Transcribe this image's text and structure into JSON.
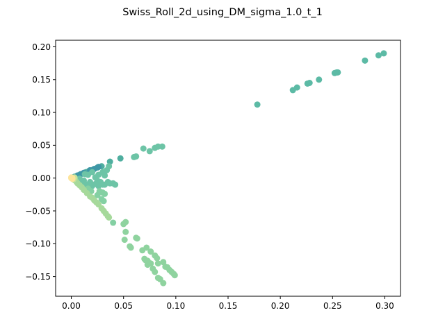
{
  "chart_data": {
    "type": "scatter",
    "title": "Swiss_Roll_2d_using_DM_sigma_1.0_t_1",
    "xlabel": "",
    "ylabel": "",
    "xlim": [
      -0.015,
      0.315
    ],
    "ylim": [
      -0.18,
      0.21
    ],
    "xticks": [
      0.0,
      0.05,
      0.1,
      0.15,
      0.2,
      0.25,
      0.3
    ],
    "xtick_labels": [
      "0.00",
      "0.05",
      "0.10",
      "0.15",
      "0.20",
      "0.25",
      "0.30"
    ],
    "yticks": [
      -0.15,
      -0.1,
      -0.05,
      0.0,
      0.05,
      0.1,
      0.15,
      0.2
    ],
    "ytick_labels": [
      "−0.15",
      "−0.10",
      "−0.05",
      "0.00",
      "0.05",
      "0.10",
      "0.15",
      "0.20"
    ],
    "grid": false,
    "colormap": "viridis-like (light)",
    "series": [
      {
        "color": "#5cbaa5",
        "points": [
          [
            0.178,
            0.112
          ],
          [
            0.212,
            0.134
          ],
          [
            0.216,
            0.138
          ],
          [
            0.226,
            0.144
          ],
          [
            0.228,
            0.145
          ],
          [
            0.237,
            0.15
          ],
          [
            0.252,
            0.16
          ],
          [
            0.254,
            0.161
          ],
          [
            0.255,
            0.161
          ],
          [
            0.281,
            0.179
          ],
          [
            0.294,
            0.187
          ],
          [
            0.299,
            0.19
          ]
        ]
      },
      {
        "color": "#4fae9f",
        "points": [
          [
            0.047,
            0.03
          ],
          [
            0.037,
            0.025
          ],
          [
            0.029,
            0.018
          ],
          [
            0.025,
            0.016
          ],
          [
            0.021,
            0.013
          ],
          [
            0.017,
            0.011
          ],
          [
            0.014,
            0.009
          ],
          [
            0.011,
            0.007
          ],
          [
            0.008,
            0.005
          ],
          [
            0.005,
            0.003
          ],
          [
            0.003,
            0.002
          ]
        ]
      },
      {
        "color": "#3f97a6",
        "points": [
          [
            0.018,
            0.012
          ],
          [
            0.022,
            0.014
          ],
          [
            0.026,
            0.017
          ],
          [
            0.012,
            0.008
          ],
          [
            0.009,
            0.006
          ],
          [
            0.006,
            0.004
          ],
          [
            0.004,
            0.002
          ]
        ]
      },
      {
        "color": "#6dc4a6",
        "points": [
          [
            0.069,
            0.045
          ],
          [
            0.075,
            0.041
          ],
          [
            0.08,
            0.046
          ],
          [
            0.083,
            0.048
          ],
          [
            0.087,
            0.048
          ],
          [
            0.06,
            0.032
          ],
          [
            0.062,
            0.033
          ],
          [
            0.036,
            0.018
          ],
          [
            0.034,
            0.012
          ],
          [
            0.03,
            0.009
          ],
          [
            0.026,
            0.005
          ],
          [
            0.023,
            0.001
          ],
          [
            0.025,
            -0.004
          ],
          [
            0.028,
            -0.006
          ],
          [
            0.032,
            -0.01
          ],
          [
            0.03,
            -0.01
          ],
          [
            0.035,
            -0.006
          ],
          [
            0.037,
            -0.008
          ],
          [
            0.04,
            -0.008
          ],
          [
            0.042,
            -0.01
          ],
          [
            0.026,
            -0.012
          ],
          [
            0.02,
            -0.012
          ],
          [
            0.015,
            -0.01
          ],
          [
            0.01,
            -0.008
          ],
          [
            0.012,
            -0.004
          ],
          [
            0.008,
            -0.001
          ],
          [
            0.016,
            0.005
          ],
          [
            0.02,
            0.009
          ],
          [
            0.013,
            0.006
          ],
          [
            0.023,
            -0.009
          ],
          [
            0.018,
            -0.006
          ],
          [
            0.032,
            0.004
          ]
        ]
      },
      {
        "color": "#84d0a3",
        "points": [
          [
            0.027,
            -0.02
          ],
          [
            0.03,
            -0.022
          ],
          [
            0.025,
            -0.026
          ],
          [
            0.032,
            -0.024
          ],
          [
            0.029,
            -0.032
          ],
          [
            0.031,
            -0.035
          ],
          [
            0.019,
            -0.02
          ],
          [
            0.016,
            -0.016
          ],
          [
            0.04,
            -0.068
          ]
        ]
      },
      {
        "color": "#8fd39f",
        "points": [
          [
            0.052,
            -0.067
          ],
          [
            0.05,
            -0.07
          ],
          [
            0.052,
            -0.082
          ],
          [
            0.051,
            -0.094
          ],
          [
            0.056,
            -0.104
          ],
          [
            0.057,
            -0.106
          ],
          [
            0.062,
            -0.091
          ],
          [
            0.063,
            -0.092
          ],
          [
            0.068,
            -0.11
          ],
          [
            0.072,
            -0.106
          ],
          [
            0.076,
            -0.112
          ],
          [
            0.07,
            -0.123
          ],
          [
            0.071,
            -0.125
          ],
          [
            0.073,
            -0.126
          ],
          [
            0.073,
            -0.132
          ],
          [
            0.076,
            -0.13
          ],
          [
            0.08,
            -0.118
          ],
          [
            0.082,
            -0.122
          ],
          [
            0.083,
            -0.13
          ],
          [
            0.088,
            -0.128
          ],
          [
            0.078,
            -0.138
          ],
          [
            0.08,
            -0.143
          ],
          [
            0.083,
            -0.152
          ],
          [
            0.085,
            -0.154
          ],
          [
            0.088,
            -0.16
          ],
          [
            0.09,
            -0.135
          ],
          [
            0.092,
            -0.136
          ],
          [
            0.094,
            -0.14
          ],
          [
            0.096,
            -0.143
          ],
          [
            0.098,
            -0.146
          ],
          [
            0.099,
            -0.148
          ]
        ]
      },
      {
        "color": "#a6d99b",
        "points": [
          [
            0.036,
            -0.06
          ],
          [
            0.035,
            -0.058
          ],
          [
            0.033,
            -0.054
          ],
          [
            0.031,
            -0.05
          ],
          [
            0.029,
            -0.046
          ],
          [
            0.026,
            -0.04
          ],
          [
            0.024,
            -0.037
          ],
          [
            0.022,
            -0.034
          ],
          [
            0.02,
            -0.03
          ],
          [
            0.018,
            -0.028
          ],
          [
            0.015,
            -0.023
          ],
          [
            0.012,
            -0.018
          ],
          [
            0.01,
            -0.014
          ],
          [
            0.008,
            -0.011
          ],
          [
            0.006,
            -0.008
          ],
          [
            0.005,
            -0.006
          ],
          [
            0.004,
            -0.004
          ],
          [
            0.003,
            -0.003
          ]
        ]
      },
      {
        "color": "#c7e49a",
        "points": [
          [
            0.002,
            -0.002
          ],
          [
            0.001,
            -0.001
          ],
          [
            0.002,
            0.0
          ],
          [
            0.003,
            0.001
          ]
        ]
      },
      {
        "color": "#fde49b",
        "points": [
          [
            0.0,
            0.0
          ],
          [
            0.001,
            0.0
          ],
          [
            0.0,
            0.001
          ],
          [
            0.001,
            -0.001
          ]
        ]
      }
    ]
  }
}
